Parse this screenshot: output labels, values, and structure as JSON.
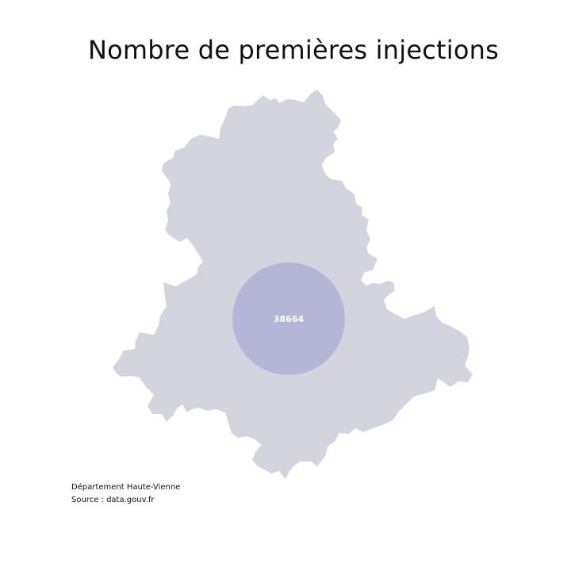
{
  "title": "Nombre de premières injections",
  "map": {
    "region": "Haute-Vienne",
    "fill_color": "#d4d4df",
    "bubble": {
      "value": "38664",
      "color": "#b3b3d6",
      "label_color": "#ffffff"
    }
  },
  "footer": {
    "line1": "Département Haute-Vienne",
    "line2": "Source : data.gouv.fr"
  }
}
